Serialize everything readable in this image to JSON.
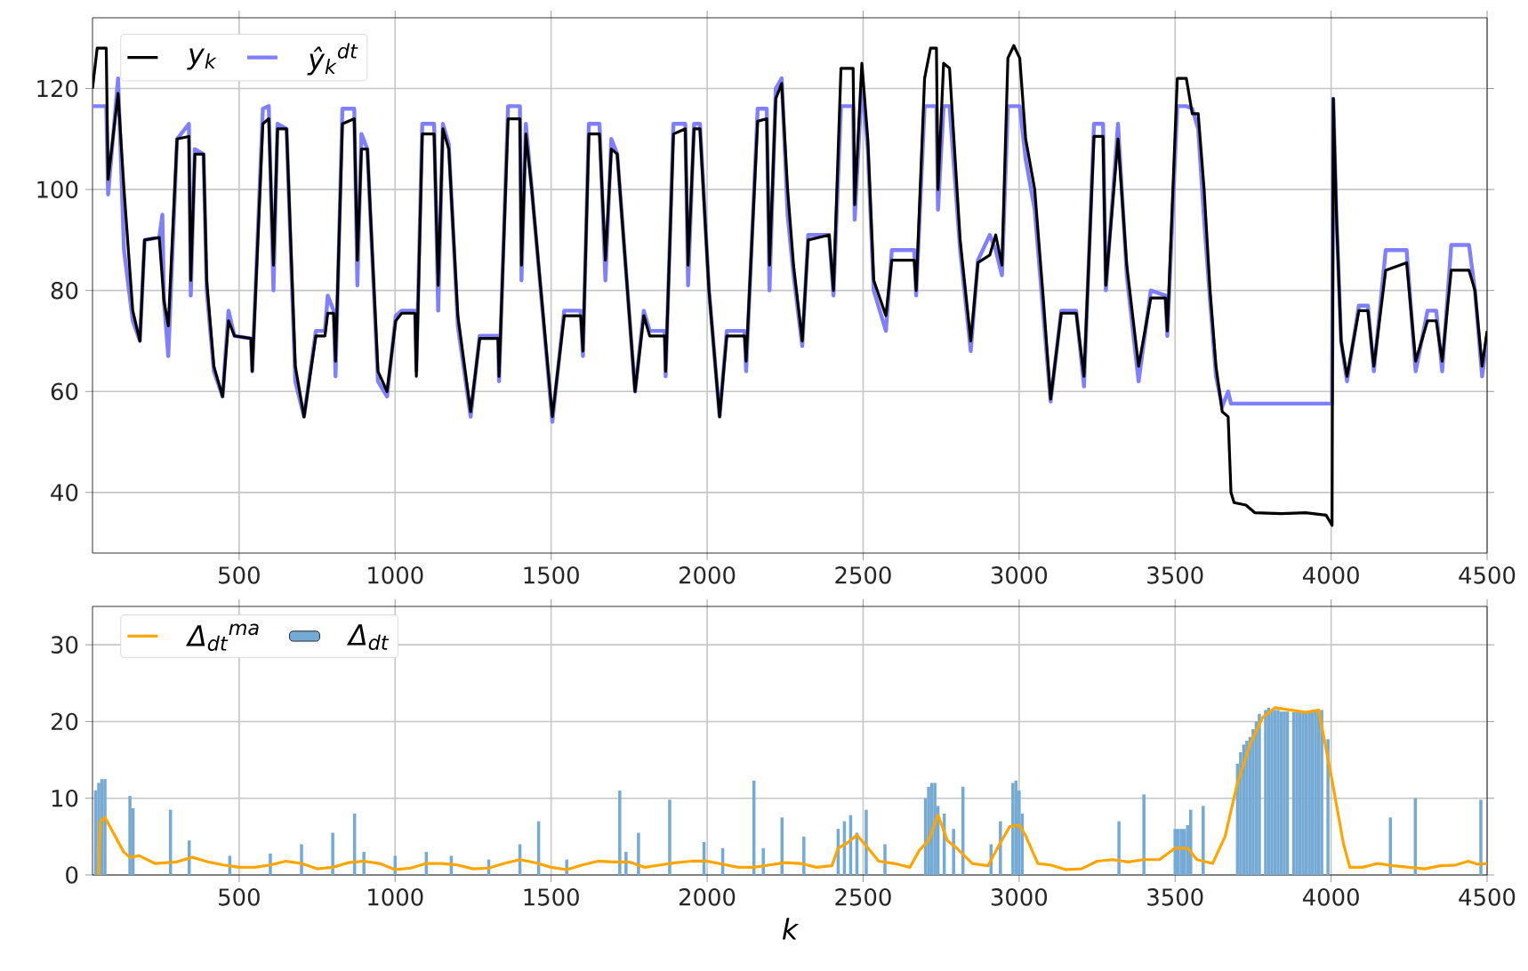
{
  "chart_data": [
    {
      "type": "line",
      "xlim": [
        30,
        4500
      ],
      "ylim": [
        28,
        134
      ],
      "xticks": [
        500,
        1000,
        1500,
        2000,
        2500,
        3000,
        3500,
        4000,
        4500
      ],
      "yticks": [
        40,
        60,
        80,
        100,
        120
      ],
      "grid": true,
      "legend": "top left",
      "marker": "none",
      "line_style": "solid",
      "series": [
        {
          "name": "y$_{k}$",
          "color": "#000000",
          "x": [
            30,
            45,
            74,
            80,
            112,
            131,
            159,
            182,
            197,
            244,
            259,
            273,
            301,
            339,
            345,
            358,
            386,
            396,
            419,
            447,
            466,
            485,
            538,
            542,
            576,
            595,
            610,
            623,
            652,
            680,
            708,
            746,
            775,
            784,
            803,
            809,
            831,
            869,
            879,
            892,
            911,
            945,
            974,
            1002,
            1021,
            1064,
            1068,
            1087,
            1125,
            1138,
            1153,
            1172,
            1201,
            1242,
            1271,
            1330,
            1333,
            1362,
            1400,
            1405,
            1419,
            1438,
            1504,
            1542,
            1595,
            1602,
            1621,
            1655,
            1674,
            1693,
            1712,
            1769,
            1797,
            1816,
            1864,
            1867,
            1892,
            1930,
            1939,
            1958,
            1977,
            2006,
            2040,
            2063,
            2120,
            2125,
            2162,
            2191,
            2200,
            2220,
            2239,
            2258,
            2277,
            2305,
            2324,
            2391,
            2405,
            2429,
            2468,
            2473,
            2496,
            2515,
            2534,
            2573,
            2592,
            2664,
            2670,
            2697,
            2716,
            2735,
            2740,
            2758,
            2777,
            2811,
            2845,
            2868,
            2906,
            2925,
            2945,
            2964,
            2983,
            3002,
            3021,
            3050,
            3078,
            3101,
            3135,
            3183,
            3208,
            3240,
            3269,
            3278,
            3317,
            3345,
            3383,
            3422,
            3469,
            3475,
            3507,
            3536,
            3555,
            3574,
            3593,
            3612,
            3631,
            3651,
            3670,
            3679,
            3689,
            3727,
            3755,
            3841,
            3918,
            3984,
            4003,
            4007,
            4017,
            4032,
            4051,
            4089,
            4118,
            4137,
            4175,
            4242,
            4271,
            4309,
            4337,
            4356,
            4385,
            4442,
            4461,
            4484,
            4500
          ],
          "values": [
            120,
            128,
            128,
            102,
            119,
            100,
            76,
            70,
            90,
            90.5,
            78,
            73,
            110,
            110.5,
            82,
            107,
            107,
            82,
            65,
            59,
            74,
            71,
            70.5,
            64,
            113,
            114,
            85,
            112,
            112,
            65,
            55,
            71,
            71,
            75.5,
            75.5,
            66,
            113,
            114,
            86,
            108,
            108,
            64,
            60,
            74,
            75.5,
            75.5,
            63,
            111,
            111,
            81,
            112,
            108,
            75,
            56,
            70.5,
            70.5,
            63,
            114,
            114,
            85,
            111,
            100,
            55,
            75,
            75,
            68,
            111,
            111,
            86,
            108,
            107,
            60,
            75,
            71,
            71,
            64,
            111,
            112,
            85,
            112,
            112,
            80,
            55,
            71,
            71,
            66,
            113.5,
            114,
            85,
            118,
            121,
            100,
            85,
            70,
            90,
            91,
            80,
            124,
            124,
            97,
            125,
            110,
            82,
            75,
            86,
            86,
            80,
            122,
            128,
            128,
            100,
            125,
            124,
            90,
            70,
            85.5,
            87,
            91,
            85,
            126,
            128.5,
            126,
            110,
            100,
            78,
            58.5,
            75.5,
            75.5,
            63,
            110.5,
            110.5,
            81,
            110,
            85,
            65,
            78.5,
            78.5,
            72,
            122,
            122,
            115,
            115,
            100,
            80,
            65,
            56,
            55,
            40,
            38,
            37.5,
            36,
            35.8,
            36,
            35.5,
            33.5,
            118,
            95,
            70,
            63,
            76,
            76,
            65,
            84,
            85.5,
            66,
            74,
            74,
            66,
            84,
            84,
            80,
            65,
            72
          ]
        },
        {
          "name": "ŷ$_{k}$$^{dt}$",
          "color": "#8080ff",
          "x": [
            30,
            55,
            74,
            80,
            112,
            131,
            159,
            182,
            197,
            244,
            254,
            259,
            273,
            301,
            339,
            345,
            358,
            386,
            396,
            419,
            447,
            466,
            485,
            538,
            542,
            576,
            595,
            610,
            623,
            652,
            680,
            708,
            746,
            775,
            784,
            803,
            809,
            831,
            869,
            879,
            892,
            911,
            945,
            974,
            1002,
            1021,
            1064,
            1068,
            1087,
            1125,
            1138,
            1153,
            1172,
            1201,
            1242,
            1271,
            1330,
            1333,
            1362,
            1400,
            1405,
            1419,
            1438,
            1504,
            1542,
            1595,
            1602,
            1621,
            1655,
            1674,
            1693,
            1712,
            1769,
            1797,
            1816,
            1864,
            1867,
            1892,
            1930,
            1939,
            1958,
            1977,
            2006,
            2040,
            2063,
            2120,
            2125,
            2162,
            2191,
            2200,
            2220,
            2239,
            2258,
            2277,
            2305,
            2324,
            2391,
            2405,
            2429,
            2468,
            2473,
            2496,
            2515,
            2534,
            2573,
            2592,
            2664,
            2670,
            2697,
            2716,
            2735,
            2740,
            2758,
            2777,
            2811,
            2845,
            2868,
            2906,
            2925,
            2945,
            2964,
            2983,
            3002,
            3021,
            3050,
            3078,
            3101,
            3135,
            3183,
            3208,
            3240,
            3269,
            3278,
            3317,
            3345,
            3383,
            3422,
            3469,
            3475,
            3507,
            3536,
            3555,
            3574,
            3593,
            3612,
            3631,
            3651,
            3670,
            3679,
            4003,
            4007,
            4017,
            4032,
            4051,
            4089,
            4118,
            4137,
            4175,
            4242,
            4271,
            4309,
            4337,
            4356,
            4385,
            4442,
            4461,
            4484,
            4500
          ],
          "values": [
            116.5,
            116.5,
            116.5,
            99,
            122,
            88,
            74,
            70,
            90,
            90.5,
            95,
            78,
            67,
            110,
            113,
            79,
            108,
            107,
            80,
            64,
            59,
            76,
            71,
            70.5,
            64,
            116,
            116.5,
            80,
            113,
            112,
            62,
            55,
            72,
            72,
            79,
            76,
            63,
            116,
            116,
            81,
            111,
            108,
            62,
            59,
            75,
            76,
            76,
            64,
            113,
            113,
            76,
            113,
            109,
            73,
            55,
            71,
            71,
            62,
            116.5,
            116.5,
            82,
            113,
            100,
            54,
            76,
            76,
            67,
            113,
            113,
            82,
            110,
            107,
            60,
            76,
            72,
            72,
            63,
            113,
            113,
            81,
            113,
            113,
            80,
            55,
            72,
            72,
            64,
            116,
            116,
            80,
            120,
            122,
            95,
            83,
            69,
            91,
            91,
            79,
            116.5,
            116.5,
            94,
            121,
            108,
            80,
            72,
            88,
            88,
            79,
            116.5,
            116.5,
            116.5,
            96,
            116.5,
            116.5,
            88,
            68,
            86,
            91,
            88,
            83,
            116.5,
            116.5,
            116.5,
            106,
            96,
            75,
            58,
            76,
            76,
            61,
            113,
            113,
            80,
            113,
            83,
            62,
            80,
            79,
            71,
            116.5,
            116.5,
            116,
            112,
            94,
            78,
            63,
            57,
            60,
            57.6,
            57.6,
            118,
            95,
            70,
            62,
            77,
            77,
            64,
            88,
            88,
            64,
            76,
            76,
            64,
            89,
            89,
            80,
            63,
            71
          ]
        }
      ]
    },
    {
      "type": "bar",
      "xlim": [
        30,
        4500
      ],
      "ylim": [
        0,
        35
      ],
      "xticks": [
        500,
        1000,
        1500,
        2000,
        2500,
        3000,
        3500,
        4000,
        4500
      ],
      "yticks": [
        0,
        10,
        20,
        30
      ],
      "grid": true,
      "legend": "top left",
      "xlabel": "k",
      "series": [
        {
          "name": "Δ$_{dt}$$^{ma}$",
          "color": "#ffa500",
          "type": "line",
          "x": [
            50,
            55,
            70,
            90,
            130,
            150,
            180,
            230,
            300,
            350,
            400,
            450,
            500,
            550,
            600,
            650,
            700,
            750,
            800,
            850,
            900,
            950,
            1000,
            1050,
            1100,
            1150,
            1200,
            1250,
            1300,
            1350,
            1400,
            1450,
            1500,
            1550,
            1600,
            1650,
            1700,
            1750,
            1800,
            1850,
            1900,
            1950,
            2000,
            2050,
            2100,
            2150,
            2200,
            2250,
            2300,
            2350,
            2400,
            2420,
            2450,
            2480,
            2510,
            2550,
            2600,
            2650,
            2680,
            2710,
            2740,
            2770,
            2800,
            2850,
            2900,
            2940,
            2970,
            3000,
            3020,
            3060,
            3100,
            3150,
            3200,
            3250,
            3300,
            3350,
            3400,
            3450,
            3500,
            3540,
            3570,
            3620,
            3660,
            3700,
            3740,
            3780,
            3820,
            3870,
            3920,
            3960,
            4000,
            4040,
            4060,
            4100,
            4150,
            4200,
            4250,
            4300,
            4350,
            4400,
            4440,
            4470,
            4500
          ],
          "values": [
            0,
            7,
            7.5,
            6,
            3,
            2.3,
            2.5,
            1.5,
            1.7,
            2.3,
            1.7,
            1.3,
            1,
            1,
            1.3,
            1.8,
            1.5,
            0.8,
            1,
            1.6,
            1.8,
            1.5,
            0.7,
            0.9,
            1.5,
            1.5,
            1.3,
            0.8,
            0.9,
            1.5,
            2,
            1.6,
            1,
            0.7,
            1.3,
            1.8,
            1.7,
            1.7,
            1,
            1.3,
            1.6,
            1.8,
            1.8,
            1.4,
            1,
            1,
            1.3,
            1.6,
            1.5,
            1,
            1.2,
            3.5,
            4.2,
            5.2,
            3.8,
            1.8,
            1.5,
            1,
            3.2,
            4.5,
            7.8,
            4.5,
            3.5,
            1.5,
            1.2,
            4.2,
            6.3,
            6.5,
            5.2,
            1.5,
            1.3,
            0.7,
            0.8,
            1.8,
            2,
            1.7,
            2,
            2,
            3.5,
            3.5,
            2,
            1.5,
            5,
            12,
            17,
            20.5,
            21.8,
            21.5,
            21.2,
            21.5,
            13,
            4,
            1,
            1,
            1.5,
            1.2,
            1,
            0.8,
            1.2,
            1.3,
            1.8,
            1.4,
            1.5
          ]
        },
        {
          "name": "Δ$_{dt}$",
          "color": "#75aad4",
          "x": [
            40,
            50,
            60,
            70,
            150,
            160,
            280,
            340,
            470,
            600,
            700,
            800,
            870,
            900,
            1000,
            1100,
            1180,
            1300,
            1400,
            1460,
            1550,
            1720,
            1740,
            1780,
            1880,
            1990,
            2050,
            2150,
            2180,
            2240,
            2310,
            2420,
            2440,
            2460,
            2480,
            2510,
            2570,
            2700,
            2710,
            2720,
            2730,
            2740,
            2760,
            2790,
            2820,
            2910,
            2940,
            2980,
            2990,
            3000,
            3010,
            3320,
            3400,
            3500,
            3510,
            3520,
            3530,
            3540,
            3550,
            3590,
            3700,
            3710,
            3720,
            3730,
            3740,
            3750,
            3760,
            3770,
            3790,
            3800,
            3810,
            3820,
            3830,
            3840,
            3850,
            3860,
            3880,
            3890,
            3900,
            3910,
            3920,
            3930,
            3940,
            3950,
            3960,
            3970,
            3990,
            4190,
            4270,
            4480
          ],
          "values": [
            11,
            12,
            12.5,
            12.5,
            10.3,
            8.7,
            8.5,
            4.5,
            2.5,
            2.8,
            4,
            5.5,
            8,
            3,
            2.5,
            3,
            2.5,
            2,
            4,
            7,
            2,
            11,
            3,
            5.5,
            9.8,
            4.3,
            3.5,
            12.3,
            3.5,
            7.5,
            5,
            6,
            7,
            7.8,
            5.5,
            8.5,
            4,
            10,
            11.5,
            12,
            12,
            9,
            8,
            6,
            11.5,
            4,
            7,
            12,
            12.3,
            11,
            8,
            7,
            10.5,
            6,
            6,
            6,
            6,
            6.5,
            8.5,
            9,
            14.5,
            16,
            17,
            17.5,
            18,
            19,
            20,
            21,
            21.5,
            21.8,
            21.5,
            21.5,
            21.5,
            21.3,
            21.3,
            21.3,
            21.2,
            21.2,
            21.2,
            21.2,
            21.2,
            21.3,
            21.5,
            21.5,
            21.5,
            21.5,
            17.7,
            7.5,
            10,
            9.8
          ]
        }
      ]
    }
  ]
}
